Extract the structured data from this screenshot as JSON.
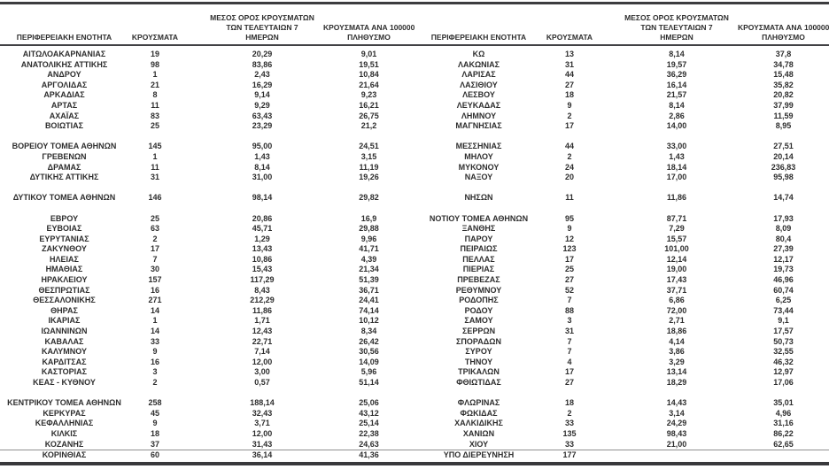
{
  "styles": {
    "background": "#ffffff",
    "text_color": "#2e2e2e",
    "thick_rule_color": "#3c3c3f",
    "thin_rule_color": "#8f8f8f"
  },
  "columns": {
    "region": "ΠΕΡΙΦΕΡΕΙΑΚΗ ΕΝΟΤΗΤΑ",
    "cases": "ΚΡΟΥΣΜΑΤΑ",
    "avg7_line1": "ΜΕΣΟΣ ΟΡΟΣ ΚΡΟΥΣΜΑΤΩΝ",
    "avg7_line2": "ΤΩΝ ΤΕΛΕΥΤΑΙΩΝ 7",
    "avg7_line3": "ΗΜΕΡΩΝ",
    "per100k_line1": "ΚΡΟΥΣΜΑΤΑ ΑΝΑ 100000",
    "per100k_line2": "ΠΛΗΘΥΣΜΟ"
  },
  "rows": [
    {
      "l": [
        "ΑΙΤΩΛΟΑΚΑΡΝΑΝΙΑΣ",
        "19",
        "20,29",
        "9,01"
      ],
      "r": [
        "ΚΩ",
        "13",
        "8,14",
        "37,8"
      ]
    },
    {
      "l": [
        "ΑΝΑΤΟΛΙΚΗΣ ΑΤΤΙΚΗΣ",
        "98",
        "83,86",
        "19,51"
      ],
      "r": [
        "ΛΑΚΩΝΙΑΣ",
        "31",
        "19,57",
        "34,78"
      ]
    },
    {
      "l": [
        "ΑΝΔΡΟΥ",
        "1",
        "2,43",
        "10,84"
      ],
      "r": [
        "ΛΑΡΙΣΑΣ",
        "44",
        "36,29",
        "15,48"
      ]
    },
    {
      "l": [
        "ΑΡΓΟΛΙΔΑΣ",
        "21",
        "16,29",
        "21,64"
      ],
      "r": [
        "ΛΑΣΙΘΙΟΥ",
        "27",
        "16,14",
        "35,82"
      ]
    },
    {
      "l": [
        "ΑΡΚΑΔΙΑΣ",
        "8",
        "9,14",
        "9,23"
      ],
      "r": [
        "ΛΕΣΒΟΥ",
        "18",
        "21,57",
        "20,82"
      ]
    },
    {
      "l": [
        "ΑΡΤΑΣ",
        "11",
        "9,29",
        "16,21"
      ],
      "r": [
        "ΛΕΥΚΑΔΑΣ",
        "9",
        "8,14",
        "37,99"
      ]
    },
    {
      "l": [
        "ΑΧΑΪΑΣ",
        "83",
        "63,43",
        "26,75"
      ],
      "r": [
        "ΛΗΜΝΟΥ",
        "2",
        "2,86",
        "11,59"
      ]
    },
    {
      "l": [
        "ΒΟΙΩΤΙΑΣ",
        "25",
        "23,29",
        "21,2"
      ],
      "r": [
        "ΜΑΓΝΗΣΙΑΣ",
        "17",
        "14,00",
        "8,95"
      ]
    },
    {
      "l": [
        "",
        "",
        "",
        ""
      ],
      "r": [
        "",
        "",
        "",
        ""
      ]
    },
    {
      "l": [
        "ΒΟΡΕΙΟΥ ΤΟΜΕΑ ΑΘΗΝΩΝ",
        "145",
        "95,00",
        "24,51"
      ],
      "r": [
        "ΜΕΣΣΗΝΙΑΣ",
        "44",
        "33,00",
        "27,51"
      ]
    },
    {
      "l": [
        "ΓΡΕΒΕΝΩΝ",
        "1",
        "1,43",
        "3,15"
      ],
      "r": [
        "ΜΗΛΟΥ",
        "2",
        "1,43",
        "20,14"
      ]
    },
    {
      "l": [
        "ΔΡΑΜΑΣ",
        "11",
        "8,14",
        "11,19"
      ],
      "r": [
        "ΜΥΚΟΝΟΥ",
        "24",
        "18,14",
        "236,83"
      ]
    },
    {
      "l": [
        "ΔΥΤΙΚΗΣ ΑΤΤΙΚΗΣ",
        "31",
        "31,00",
        "19,26"
      ],
      "r": [
        "ΝΑΞΟΥ",
        "20",
        "17,00",
        "95,98"
      ]
    },
    {
      "l": [
        "",
        "",
        "",
        ""
      ],
      "r": [
        "",
        "",
        "",
        ""
      ]
    },
    {
      "l": [
        "ΔΥΤΙΚΟΥ ΤΟΜΕΑ ΑΘΗΝΩΝ",
        "146",
        "98,14",
        "29,82"
      ],
      "r": [
        "ΝΗΣΩΝ",
        "11",
        "11,86",
        "14,74"
      ]
    },
    {
      "l": [
        "",
        "",
        "",
        ""
      ],
      "r": [
        "",
        "",
        "",
        ""
      ]
    },
    {
      "l": [
        "ΕΒΡΟΥ",
        "25",
        "20,86",
        "16,9"
      ],
      "r": [
        "ΝΟΤΙΟΥ ΤΟΜΕΑ ΑΘΗΝΩΝ",
        "95",
        "87,71",
        "17,93"
      ]
    },
    {
      "l": [
        "ΕΥΒΟΙΑΣ",
        "63",
        "45,71",
        "29,88"
      ],
      "r": [
        "ΞΑΝΘΗΣ",
        "9",
        "7,29",
        "8,09"
      ]
    },
    {
      "l": [
        "ΕΥΡΥΤΑΝΙΑΣ",
        "2",
        "1,29",
        "9,96"
      ],
      "r": [
        "ΠΑΡΟΥ",
        "12",
        "15,57",
        "80,4"
      ]
    },
    {
      "l": [
        "ΖΑΚΥΝΘΟΥ",
        "17",
        "13,43",
        "41,71"
      ],
      "r": [
        "ΠΕΙΡΑΙΩΣ",
        "123",
        "101,00",
        "27,39"
      ]
    },
    {
      "l": [
        "ΗΛΕΙΑΣ",
        "7",
        "10,86",
        "4,39"
      ],
      "r": [
        "ΠΕΛΛΑΣ",
        "17",
        "12,14",
        "12,17"
      ]
    },
    {
      "l": [
        "ΗΜΑΘΙΑΣ",
        "30",
        "15,43",
        "21,34"
      ],
      "r": [
        "ΠΙΕΡΙΑΣ",
        "25",
        "19,00",
        "19,73"
      ]
    },
    {
      "l": [
        "ΗΡΑΚΛΕΙΟΥ",
        "157",
        "117,29",
        "51,39"
      ],
      "r": [
        "ΠΡΕΒΕΖΑΣ",
        "27",
        "17,43",
        "46,96"
      ]
    },
    {
      "l": [
        "ΘΕΣΠΡΩΤΙΑΣ",
        "16",
        "8,43",
        "36,71"
      ],
      "r": [
        "ΡΕΘΥΜΝΟΥ",
        "52",
        "37,71",
        "60,74"
      ]
    },
    {
      "l": [
        "ΘΕΣΣΑΛΟΝΙΚΗΣ",
        "271",
        "212,29",
        "24,41"
      ],
      "r": [
        "ΡΟΔΟΠΗΣ",
        "7",
        "6,86",
        "6,25"
      ]
    },
    {
      "l": [
        "ΘΗΡΑΣ",
        "14",
        "11,86",
        "74,14"
      ],
      "r": [
        "ΡΟΔΟΥ",
        "88",
        "72,00",
        "73,44"
      ]
    },
    {
      "l": [
        "ΙΚΑΡΙΑΣ",
        "1",
        "1,71",
        "10,12"
      ],
      "r": [
        "ΣΑΜΟΥ",
        "3",
        "2,71",
        "9,1"
      ]
    },
    {
      "l": [
        "ΙΩΑΝΝΙΝΩΝ",
        "14",
        "12,43",
        "8,34"
      ],
      "r": [
        "ΣΕΡΡΩΝ",
        "31",
        "18,86",
        "17,57"
      ]
    },
    {
      "l": [
        "ΚΑΒΑΛΑΣ",
        "33",
        "22,71",
        "26,42"
      ],
      "r": [
        "ΣΠΟΡΑΔΩΝ",
        "7",
        "4,14",
        "50,73"
      ]
    },
    {
      "l": [
        "ΚΑΛΥΜΝΟΥ",
        "9",
        "7,14",
        "30,56"
      ],
      "r": [
        "ΣΥΡΟΥ",
        "7",
        "3,86",
        "32,55"
      ]
    },
    {
      "l": [
        "ΚΑΡΔΙΤΣΑΣ",
        "16",
        "12,00",
        "14,09"
      ],
      "r": [
        "ΤΗΝΟΥ",
        "4",
        "3,29",
        "46,32"
      ]
    },
    {
      "l": [
        "ΚΑΣΤΟΡΙΑΣ",
        "3",
        "3,00",
        "5,96"
      ],
      "r": [
        "ΤΡΙΚΑΛΩΝ",
        "17",
        "13,14",
        "12,97"
      ]
    },
    {
      "l": [
        "ΚΕΑΣ - ΚΥΘΝΟΥ",
        "2",
        "0,57",
        "51,14"
      ],
      "r": [
        "ΦΘΙΩΤΙΔΑΣ",
        "27",
        "18,29",
        "17,06"
      ]
    },
    {
      "l": [
        "",
        "",
        "",
        ""
      ],
      "r": [
        "",
        "",
        "",
        ""
      ]
    },
    {
      "l": [
        "ΚΕΝΤΡΙΚΟΥ ΤΟΜΕΑ ΑΘΗΝΩΝ",
        "258",
        "188,14",
        "25,06"
      ],
      "r": [
        "ΦΛΩΡΙΝΑΣ",
        "18",
        "14,43",
        "35,01"
      ]
    },
    {
      "l": [
        "ΚΕΡΚΥΡΑΣ",
        "45",
        "32,43",
        "43,12"
      ],
      "r": [
        "ΦΩΚΙΔΑΣ",
        "2",
        "3,14",
        "4,96"
      ]
    },
    {
      "l": [
        "ΚΕΦΑΛΛΗΝΙΑΣ",
        "9",
        "3,71",
        "25,14"
      ],
      "r": [
        "ΧΑΛΚΙΔΙΚΗΣ",
        "33",
        "24,29",
        "31,16"
      ]
    },
    {
      "l": [
        "ΚΙΛΚΙΣ",
        "18",
        "12,00",
        "22,38"
      ],
      "r": [
        "ΧΑΝΙΩΝ",
        "135",
        "98,43",
        "86,22"
      ]
    },
    {
      "l": [
        "ΚΟΖΑΝΗΣ",
        "37",
        "31,43",
        "24,63"
      ],
      "r": [
        "ΧΙΟΥ",
        "33",
        "21,00",
        "62,65"
      ]
    },
    {
      "l": [
        "ΚΟΡΙΝΘΙΑΣ",
        "60",
        "36,14",
        "41,36"
      ],
      "r": [
        "ΥΠΟ ΔΙΕΡΕΥΝΗΣΗ",
        "177",
        "",
        ""
      ]
    }
  ]
}
